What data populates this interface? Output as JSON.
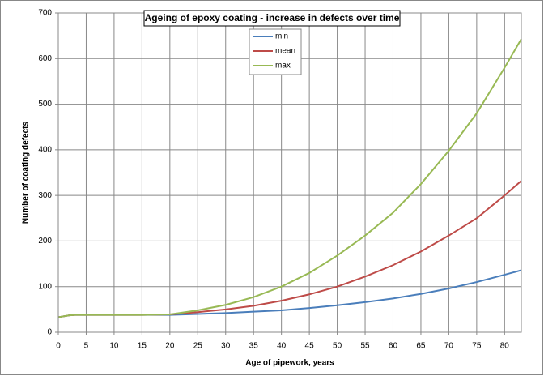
{
  "chart_data": {
    "type": "line",
    "title": "Ageing of epoxy coating - increase in defects over time",
    "x_label": "Age of pipework, years",
    "y_label": "Number of coating defects",
    "x": [
      0,
      2,
      3,
      5,
      10,
      15,
      20,
      25,
      30,
      35,
      40,
      45,
      50,
      55,
      60,
      65,
      70,
      75,
      80,
      83
    ],
    "series": [
      {
        "name": "min",
        "color": "#4a7ebb",
        "values": [
          33,
          37,
          38,
          38,
          38,
          38,
          38,
          40,
          42,
          45,
          48,
          53,
          59,
          66,
          74,
          84,
          96,
          110,
          126,
          136
        ]
      },
      {
        "name": "mean",
        "color": "#be4b48",
        "values": [
          33,
          37,
          38,
          38,
          38,
          38,
          39,
          44,
          50,
          58,
          69,
          83,
          100,
          122,
          147,
          177,
          212,
          250,
          300,
          332
        ]
      },
      {
        "name": "max",
        "color": "#98b954",
        "values": [
          33,
          37,
          38,
          38,
          38,
          38,
          39,
          48,
          60,
          77,
          100,
          130,
          168,
          212,
          262,
          325,
          398,
          480,
          580,
          643
        ]
      }
    ],
    "xlim": [
      0,
      83
    ],
    "xticks": [
      0,
      5,
      10,
      15,
      20,
      25,
      30,
      35,
      40,
      45,
      50,
      55,
      60,
      65,
      70,
      75,
      80
    ],
    "ylim": [
      0,
      700
    ],
    "yticks": [
      0,
      100,
      200,
      300,
      400,
      500,
      600,
      700
    ],
    "grid": true
  }
}
